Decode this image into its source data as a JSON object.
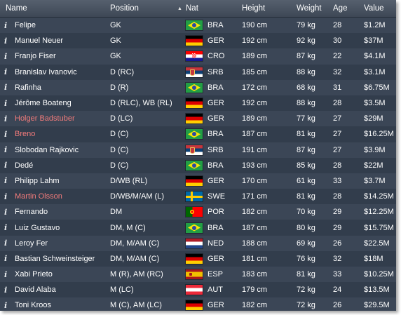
{
  "table": {
    "columns": {
      "name": "Name",
      "position": "Position",
      "nat": "Nat",
      "height": "Height",
      "weight": "Weight",
      "age": "Age",
      "value": "Value"
    },
    "sort_indicator": "▲",
    "info_glyph": "i",
    "rows": [
      {
        "name": "Felipe",
        "position": "GK",
        "nat": "BRA",
        "height": "190 cm",
        "weight": "79 kg",
        "age": "28",
        "value": "$1.2M",
        "highlight": false
      },
      {
        "name": "Manuel Neuer",
        "position": "GK",
        "nat": "GER",
        "height": "192 cm",
        "weight": "92 kg",
        "age": "30",
        "value": "$37M",
        "highlight": false
      },
      {
        "name": "Franjo Fiser",
        "position": "GK",
        "nat": "CRO",
        "height": "189 cm",
        "weight": "87 kg",
        "age": "22",
        "value": "$4.1M",
        "highlight": false
      },
      {
        "name": "Branislav Ivanovic",
        "position": "D (RC)",
        "nat": "SRB",
        "height": "185 cm",
        "weight": "88 kg",
        "age": "32",
        "value": "$3.1M",
        "highlight": false
      },
      {
        "name": "Rafinha",
        "position": "D (R)",
        "nat": "BRA",
        "height": "172 cm",
        "weight": "68 kg",
        "age": "31",
        "value": "$6.75M",
        "highlight": false
      },
      {
        "name": "Jérôme Boateng",
        "position": "D (RLC), WB (RL)",
        "nat": "GER",
        "height": "192 cm",
        "weight": "88 kg",
        "age": "28",
        "value": "$3.5M",
        "highlight": false
      },
      {
        "name": "Holger Badstuber",
        "position": "D (LC)",
        "nat": "GER",
        "height": "189 cm",
        "weight": "77 kg",
        "age": "27",
        "value": "$29M",
        "highlight": true
      },
      {
        "name": "Breno",
        "position": "D (C)",
        "nat": "BRA",
        "height": "187 cm",
        "weight": "81 kg",
        "age": "27",
        "value": "$16.25M",
        "highlight": true
      },
      {
        "name": "Slobodan Rajkovic",
        "position": "D (C)",
        "nat": "SRB",
        "height": "191 cm",
        "weight": "87 kg",
        "age": "27",
        "value": "$3.9M",
        "highlight": false
      },
      {
        "name": "Dedé",
        "position": "D (C)",
        "nat": "BRA",
        "height": "193 cm",
        "weight": "85 kg",
        "age": "28",
        "value": "$22M",
        "highlight": false
      },
      {
        "name": "Philipp Lahm",
        "position": "D/WB (RL)",
        "nat": "GER",
        "height": "170 cm",
        "weight": "61 kg",
        "age": "33",
        "value": "$3.7M",
        "highlight": false
      },
      {
        "name": "Martin Olsson",
        "position": "D/WB/M/AM (L)",
        "nat": "SWE",
        "height": "171 cm",
        "weight": "81 kg",
        "age": "28",
        "value": "$14.25M",
        "highlight": true
      },
      {
        "name": "Fernando",
        "position": "DM",
        "nat": "POR",
        "height": "182 cm",
        "weight": "70 kg",
        "age": "29",
        "value": "$12.25M",
        "highlight": false
      },
      {
        "name": "Luiz Gustavo",
        "position": "DM, M (C)",
        "nat": "BRA",
        "height": "187 cm",
        "weight": "80 kg",
        "age": "29",
        "value": "$15.75M",
        "highlight": false
      },
      {
        "name": "Leroy Fer",
        "position": "DM, M/AM (C)",
        "nat": "NED",
        "height": "188 cm",
        "weight": "69 kg",
        "age": "26",
        "value": "$22.5M",
        "highlight": false
      },
      {
        "name": "Bastian Schweinsteiger",
        "position": "DM, M/AM (C)",
        "nat": "GER",
        "height": "181 cm",
        "weight": "76 kg",
        "age": "32",
        "value": "$18M",
        "highlight": false
      },
      {
        "name": "Xabi Prieto",
        "position": "M (R), AM (RC)",
        "nat": "ESP",
        "height": "183 cm",
        "weight": "81 kg",
        "age": "33",
        "value": "$10.25M",
        "highlight": false
      },
      {
        "name": "David Alaba",
        "position": "M (LC)",
        "nat": "AUT",
        "height": "179 cm",
        "weight": "72 kg",
        "age": "24",
        "value": "$13.5M",
        "highlight": false
      },
      {
        "name": "Toni Kroos",
        "position": "M (C), AM (LC)",
        "nat": "GER",
        "height": "182 cm",
        "weight": "72 kg",
        "age": "26",
        "value": "$29.5M",
        "highlight": false
      }
    ]
  },
  "colors": {
    "highlight_name": "#f27b7b",
    "row_odd": "#3b4656",
    "row_even": "#323d4c",
    "header": "#4a5462"
  },
  "icons": {
    "info": "info-icon",
    "sort": "sort-ascending-icon",
    "flag": "country-flag-icon"
  }
}
